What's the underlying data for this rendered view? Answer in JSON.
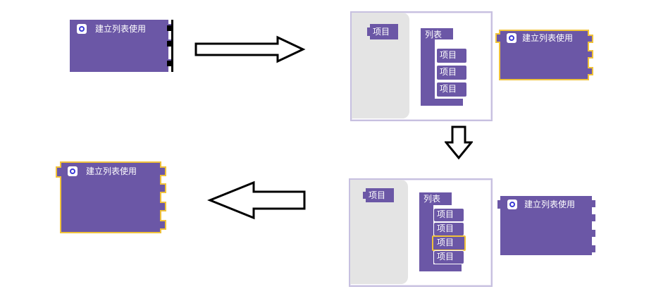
{
  "blocks": {
    "create_list": "建立列表使用",
    "list_container": "列表",
    "item": "项目"
  },
  "colors": {
    "block": "#6b57a6",
    "block_dark": "#4e3f80",
    "highlight": "#f0c23a",
    "panel_border": "#c7c0e0",
    "flyout": "#e4e4e4"
  }
}
